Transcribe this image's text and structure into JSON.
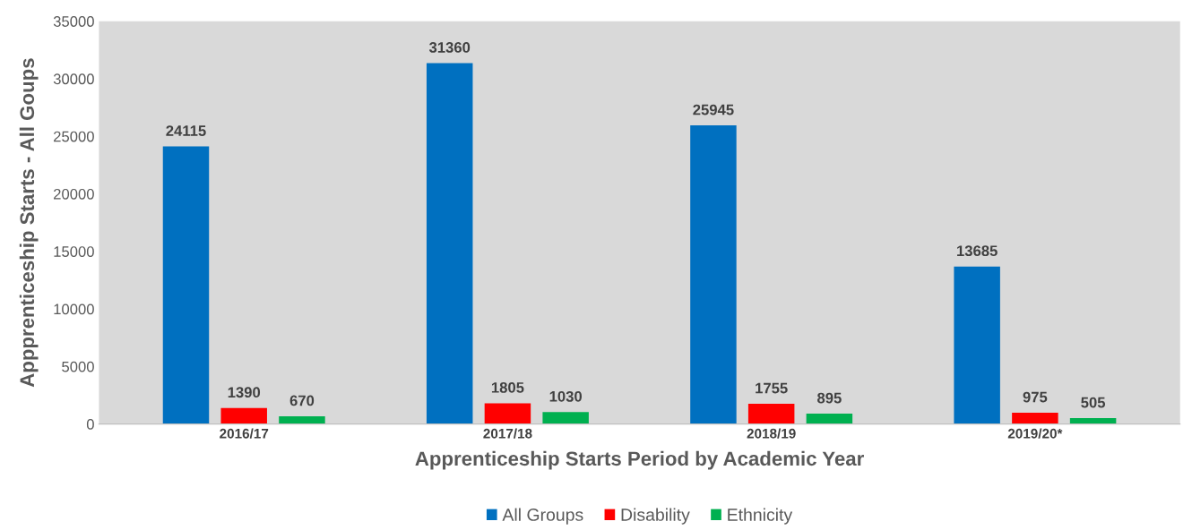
{
  "chart_data": {
    "type": "bar",
    "xlabel": "Apprenticeship Starts Period by Academic Year",
    "ylabel": "Appprenticeship Starts - All Goups",
    "categories": [
      "2016/17",
      "2017/18",
      "2018/19",
      "2019/20*"
    ],
    "series": [
      {
        "name": "All Groups",
        "color": "#0070c0",
        "values": [
          24115,
          31360,
          25945,
          13685
        ]
      },
      {
        "name": "Disability",
        "color": "#ff0000",
        "values": [
          1390,
          1805,
          1755,
          975
        ]
      },
      {
        "name": "Ethnicity",
        "color": "#00b050",
        "values": [
          670,
          1030,
          895,
          505
        ]
      }
    ],
    "ylim": [
      0,
      35000
    ],
    "yticks": [
      0,
      5000,
      10000,
      15000,
      20000,
      25000,
      30000,
      35000
    ],
    "data_labels": true,
    "grid": false,
    "legend": "bottom"
  }
}
